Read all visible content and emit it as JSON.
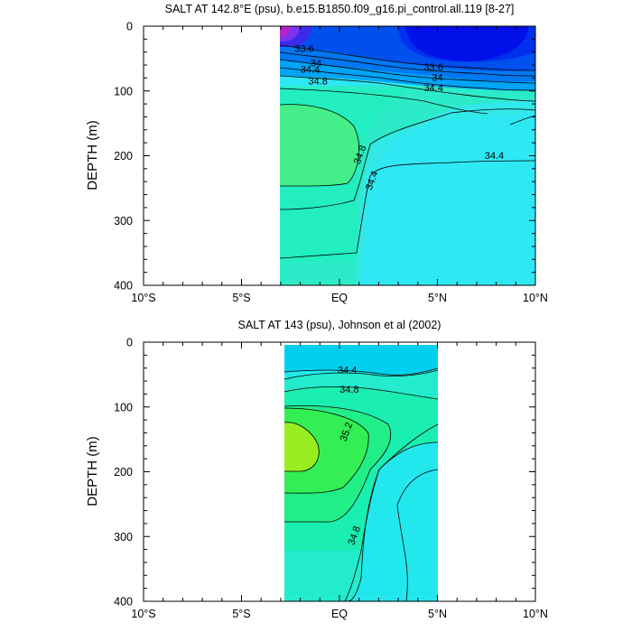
{
  "chart_data": [
    {
      "type": "contour",
      "title": "SALT AT 142.8°E (psu), b.e15.B1850.f09_g16.pi_control.all.119 [8-27]",
      "ylabel": "DEPTH (m)",
      "xlabel": "",
      "xlim": [
        -10,
        10
      ],
      "ylim": [
        400,
        0
      ],
      "x_ticks": [
        "10°S",
        "5°S",
        "EQ",
        "5°N",
        "10°N"
      ],
      "x_tick_values": [
        -10,
        -5,
        0,
        5,
        10
      ],
      "y_ticks": [
        "0",
        "100",
        "200",
        "300",
        "400"
      ],
      "y_tick_values": [
        0,
        100,
        200,
        300,
        400
      ],
      "data_extent": {
        "lat": [
          -3,
          10
        ],
        "depth": [
          0,
          400
        ]
      },
      "contour_labels": [
        {
          "value": "33.6",
          "lat": -1.8,
          "depth": 40
        },
        {
          "value": "34",
          "lat": -1.2,
          "depth": 62
        },
        {
          "value": "34.4",
          "lat": -1.5,
          "depth": 72
        },
        {
          "value": "34.8",
          "lat": -1.1,
          "depth": 90
        },
        {
          "value": "33.6",
          "lat": 4.8,
          "depth": 68
        },
        {
          "value": "34",
          "lat": 5.0,
          "depth": 84
        },
        {
          "value": "34.4",
          "lat": 4.8,
          "depth": 100
        },
        {
          "value": "34.8",
          "lat": 1.2,
          "depth": 200
        },
        {
          "value": "34.4",
          "lat": 1.8,
          "depth": 240
        },
        {
          "value": "34.4",
          "lat": 7.9,
          "depth": 205
        }
      ],
      "colors": {
        "low": "#0000ee",
        "mid": "#00ccee",
        "high": "#66ee99"
      }
    },
    {
      "type": "contour",
      "title": "SALT AT 143 (psu), Johnson et al (2002)",
      "ylabel": "DEPTH (m)",
      "xlabel": "",
      "xlim": [
        -10,
        10
      ],
      "ylim": [
        400,
        0
      ],
      "x_ticks": [
        "10°S",
        "5°S",
        "EQ",
        "5°N",
        "10°N"
      ],
      "x_tick_values": [
        -10,
        -5,
        0,
        5,
        10
      ],
      "y_ticks": [
        "0",
        "100",
        "200",
        "300",
        "400"
      ],
      "y_tick_values": [
        0,
        100,
        200,
        300,
        400
      ],
      "data_extent": {
        "lat": [
          -2.8,
          5
        ],
        "depth": [
          5,
          400
        ]
      },
      "contour_labels": [
        {
          "value": "34.4",
          "lat": 0.4,
          "depth": 48
        },
        {
          "value": "34.8",
          "lat": 0.5,
          "depth": 78
        },
        {
          "value": "35.2",
          "lat": 0.5,
          "depth": 140
        },
        {
          "value": "34.8",
          "lat": 0.9,
          "depth": 300
        }
      ],
      "colors": {
        "low": "#00e8ee",
        "mid": "#00ee99",
        "high": "#99ee22"
      }
    }
  ]
}
